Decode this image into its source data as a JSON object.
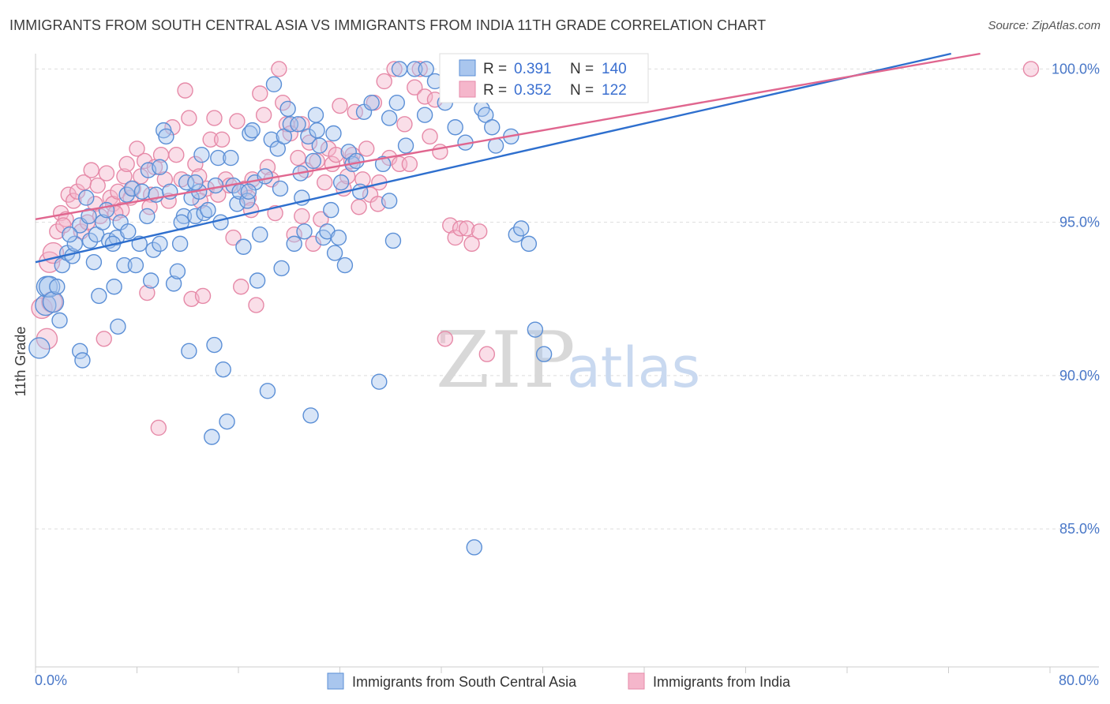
{
  "title": "IMMIGRANTS FROM SOUTH CENTRAL ASIA VS IMMIGRANTS FROM INDIA 11TH GRADE CORRELATION CHART",
  "source": "Source: ZipAtlas.com",
  "watermark": {
    "zip": "ZIP",
    "atlas": "atlas"
  },
  "colors": {
    "blue_fill": "#a9c6ee",
    "blue_stroke": "#5b8fd6",
    "blue_line": "#2e6fce",
    "pink_fill": "#f5b6cb",
    "pink_stroke": "#e68aa8",
    "pink_line": "#e0668f",
    "grid": "#dddddd",
    "axis_text": "#4a78c8"
  },
  "stats": {
    "r_label": "R =",
    "n_label": "N =",
    "blue": {
      "r": "0.391",
      "n": "140"
    },
    "pink": {
      "r": "0.352",
      "n": "122"
    }
  },
  "chart_data": {
    "type": "scatter",
    "ylabel": "11th Grade",
    "xlim": [
      0,
      80
    ],
    "ylim": [
      80.5,
      100.5
    ],
    "x_tick_labels": [
      "0.0%",
      "80.0%"
    ],
    "y_ticks": [
      85,
      90,
      95,
      100
    ],
    "y_tick_labels": [
      "85.0%",
      "90.0%",
      "95.0%",
      "100.0%"
    ],
    "legend": [
      "Immigrants from South Central Asia",
      "Immigrants from India"
    ],
    "series": [
      {
        "name": "Immigrants from South Central Asia",
        "color": "blue",
        "trend": {
          "x": [
            0,
            72.2
          ],
          "y": [
            93.7,
            100.5
          ]
        },
        "points": [
          [
            0.3,
            90.9
          ],
          [
            0.8,
            92.3
          ],
          [
            0.9,
            92.9
          ],
          [
            1.1,
            92.9
          ],
          [
            1.4,
            92.4
          ],
          [
            1.7,
            92.9
          ],
          [
            2.1,
            93.6
          ],
          [
            2.5,
            94.0
          ],
          [
            2.9,
            93.9
          ],
          [
            3.1,
            94.3
          ],
          [
            3.5,
            90.8
          ],
          [
            3.5,
            94.9
          ],
          [
            3.7,
            90.5
          ],
          [
            4.0,
            95.8
          ],
          [
            4.3,
            94.4
          ],
          [
            4.6,
            93.7
          ],
          [
            4.8,
            94.6
          ],
          [
            5.0,
            92.6
          ],
          [
            5.3,
            95.0
          ],
          [
            5.6,
            95.4
          ],
          [
            5.8,
            94.4
          ],
          [
            6.2,
            92.9
          ],
          [
            6.4,
            94.5
          ],
          [
            6.5,
            91.6
          ],
          [
            6.7,
            95.0
          ],
          [
            7.0,
            93.6
          ],
          [
            7.2,
            95.9
          ],
          [
            7.3,
            94.7
          ],
          [
            7.6,
            96.1
          ],
          [
            7.9,
            93.6
          ],
          [
            8.2,
            94.3
          ],
          [
            8.4,
            96.0
          ],
          [
            8.8,
            95.2
          ],
          [
            8.9,
            96.7
          ],
          [
            9.1,
            93.1
          ],
          [
            9.3,
            94.1
          ],
          [
            9.5,
            95.9
          ],
          [
            9.8,
            94.3
          ],
          [
            10.1,
            98.0
          ],
          [
            10.3,
            97.8
          ],
          [
            10.6,
            96.0
          ],
          [
            10.9,
            93.0
          ],
          [
            11.2,
            93.4
          ],
          [
            11.4,
            94.3
          ],
          [
            11.7,
            95.2
          ],
          [
            11.9,
            96.3
          ],
          [
            12.1,
            90.8
          ],
          [
            12.3,
            95.8
          ],
          [
            12.6,
            95.2
          ],
          [
            12.9,
            96.0
          ],
          [
            13.1,
            97.2
          ],
          [
            13.3,
            95.3
          ],
          [
            13.6,
            95.4
          ],
          [
            13.9,
            88.0
          ],
          [
            14.1,
            91.0
          ],
          [
            14.4,
            97.1
          ],
          [
            14.6,
            95.0
          ],
          [
            14.8,
            90.2
          ],
          [
            15.1,
            88.5
          ],
          [
            15.4,
            97.1
          ],
          [
            15.6,
            96.2
          ],
          [
            15.9,
            95.6
          ],
          [
            16.1,
            96.0
          ],
          [
            16.4,
            94.2
          ],
          [
            16.7,
            95.7
          ],
          [
            16.9,
            97.9
          ],
          [
            17.1,
            98.0
          ],
          [
            17.3,
            96.3
          ],
          [
            17.5,
            93.1
          ],
          [
            17.7,
            94.6
          ],
          [
            18.1,
            96.5
          ],
          [
            18.3,
            89.5
          ],
          [
            18.6,
            97.7
          ],
          [
            18.8,
            99.5
          ],
          [
            19.1,
            97.4
          ],
          [
            19.4,
            93.5
          ],
          [
            19.6,
            97.8
          ],
          [
            19.9,
            98.7
          ],
          [
            20.1,
            98.2
          ],
          [
            20.4,
            94.3
          ],
          [
            20.7,
            98.2
          ],
          [
            21.0,
            95.8
          ],
          [
            21.2,
            94.7
          ],
          [
            21.5,
            97.8
          ],
          [
            21.7,
            88.7
          ],
          [
            21.9,
            97.0
          ],
          [
            22.2,
            98.0
          ],
          [
            22.4,
            97.5
          ],
          [
            22.7,
            94.5
          ],
          [
            23.0,
            94.7
          ],
          [
            23.3,
            95.4
          ],
          [
            23.6,
            94.0
          ],
          [
            23.9,
            94.5
          ],
          [
            24.1,
            96.3
          ],
          [
            24.4,
            93.6
          ],
          [
            24.7,
            97.3
          ],
          [
            25.0,
            96.9
          ],
          [
            25.3,
            97.0
          ],
          [
            25.6,
            96.0
          ],
          [
            25.9,
            98.6
          ],
          [
            26.5,
            98.9
          ],
          [
            27.1,
            89.8
          ],
          [
            27.4,
            96.9
          ],
          [
            27.9,
            98.4
          ],
          [
            28.2,
            94.4
          ],
          [
            28.7,
            100.0
          ],
          [
            29.2,
            97.5
          ],
          [
            29.9,
            100.0
          ],
          [
            30.7,
            98.5
          ],
          [
            31.5,
            99.6
          ],
          [
            32.3,
            98.9
          ],
          [
            33.1,
            98.1
          ],
          [
            33.9,
            97.6
          ],
          [
            34.6,
            84.4
          ],
          [
            35.2,
            98.7
          ],
          [
            35.5,
            98.5
          ],
          [
            36.0,
            98.1
          ],
          [
            36.3,
            97.5
          ],
          [
            37.5,
            97.8
          ],
          [
            37.9,
            94.6
          ],
          [
            38.3,
            94.8
          ],
          [
            38.9,
            94.3
          ],
          [
            39.4,
            91.5
          ],
          [
            40.1,
            90.7
          ],
          [
            28.5,
            98.9
          ],
          [
            12.6,
            96.3
          ],
          [
            9.8,
            96.8
          ],
          [
            6.1,
            94.3
          ],
          [
            4.2,
            95.2
          ],
          [
            30.8,
            100.0
          ],
          [
            19.3,
            96.1
          ],
          [
            23.5,
            97.9
          ],
          [
            14.2,
            96.2
          ],
          [
            16.8,
            96.0
          ],
          [
            22.1,
            98.5
          ],
          [
            1.9,
            91.8
          ],
          [
            2.7,
            94.6
          ],
          [
            20.9,
            96.6
          ],
          [
            11.5,
            95.0
          ],
          [
            27.9,
            95.7
          ]
        ]
      },
      {
        "name": "Immigrants from India",
        "color": "pink",
        "trend": {
          "x": [
            0,
            74.5
          ],
          "y": [
            95.1,
            100.5
          ]
        },
        "points": [
          [
            0.5,
            92.2
          ],
          [
            0.9,
            91.2
          ],
          [
            1.1,
            93.7
          ],
          [
            1.4,
            94.0
          ],
          [
            1.7,
            94.7
          ],
          [
            2.0,
            95.3
          ],
          [
            2.4,
            95.1
          ],
          [
            2.6,
            95.9
          ],
          [
            3.0,
            95.7
          ],
          [
            3.3,
            96.0
          ],
          [
            3.6,
            94.7
          ],
          [
            3.8,
            96.3
          ],
          [
            4.1,
            95.0
          ],
          [
            4.4,
            96.7
          ],
          [
            4.7,
            95.6
          ],
          [
            4.9,
            96.2
          ],
          [
            5.1,
            95.2
          ],
          [
            5.4,
            91.2
          ],
          [
            5.6,
            96.6
          ],
          [
            5.9,
            95.8
          ],
          [
            6.1,
            95.6
          ],
          [
            6.5,
            96.0
          ],
          [
            6.8,
            95.4
          ],
          [
            7.0,
            96.5
          ],
          [
            7.2,
            96.9
          ],
          [
            7.5,
            95.8
          ],
          [
            7.7,
            96.1
          ],
          [
            8.0,
            97.4
          ],
          [
            8.3,
            96.5
          ],
          [
            8.6,
            97.0
          ],
          [
            8.8,
            92.7
          ],
          [
            9.1,
            95.9
          ],
          [
            9.4,
            96.8
          ],
          [
            9.7,
            88.3
          ],
          [
            9.9,
            97.2
          ],
          [
            10.2,
            96.4
          ],
          [
            10.5,
            95.7
          ],
          [
            10.8,
            98.1
          ],
          [
            11.1,
            97.2
          ],
          [
            11.5,
            96.4
          ],
          [
            11.8,
            99.3
          ],
          [
            12.1,
            98.4
          ],
          [
            12.3,
            92.5
          ],
          [
            12.6,
            96.9
          ],
          [
            12.9,
            96.5
          ],
          [
            13.2,
            92.6
          ],
          [
            13.5,
            96.1
          ],
          [
            13.8,
            97.7
          ],
          [
            14.1,
            98.4
          ],
          [
            14.4,
            95.9
          ],
          [
            14.7,
            97.7
          ],
          [
            15.0,
            96.4
          ],
          [
            15.3,
            96.2
          ],
          [
            15.6,
            94.5
          ],
          [
            15.9,
            98.3
          ],
          [
            16.2,
            92.9
          ],
          [
            16.5,
            96.1
          ],
          [
            16.8,
            95.8
          ],
          [
            17.1,
            96.4
          ],
          [
            17.4,
            92.3
          ],
          [
            17.7,
            99.2
          ],
          [
            18.0,
            98.5
          ],
          [
            18.3,
            96.8
          ],
          [
            18.6,
            96.4
          ],
          [
            18.9,
            95.3
          ],
          [
            19.2,
            100.0
          ],
          [
            19.5,
            98.9
          ],
          [
            19.8,
            98.2
          ],
          [
            20.1,
            97.9
          ],
          [
            20.4,
            94.6
          ],
          [
            20.7,
            97.1
          ],
          [
            21.0,
            98.2
          ],
          [
            21.3,
            96.7
          ],
          [
            21.6,
            97.6
          ],
          [
            21.9,
            94.3
          ],
          [
            22.2,
            97.0
          ],
          [
            22.5,
            95.1
          ],
          [
            22.8,
            96.3
          ],
          [
            23.1,
            97.4
          ],
          [
            23.4,
            96.9
          ],
          [
            23.7,
            97.2
          ],
          [
            24.0,
            98.8
          ],
          [
            24.3,
            96.1
          ],
          [
            24.6,
            96.5
          ],
          [
            24.9,
            97.0
          ],
          [
            25.2,
            98.6
          ],
          [
            25.5,
            95.5
          ],
          [
            25.8,
            96.4
          ],
          [
            26.1,
            97.4
          ],
          [
            26.4,
            95.9
          ],
          [
            26.7,
            98.9
          ],
          [
            27.1,
            96.3
          ],
          [
            27.5,
            99.6
          ],
          [
            27.9,
            97.1
          ],
          [
            28.3,
            100.0
          ],
          [
            28.7,
            96.9
          ],
          [
            29.1,
            98.2
          ],
          [
            29.5,
            96.9
          ],
          [
            29.9,
            99.4
          ],
          [
            30.3,
            100.0
          ],
          [
            30.7,
            99.1
          ],
          [
            31.1,
            97.8
          ],
          [
            31.5,
            99.0
          ],
          [
            31.9,
            97.3
          ],
          [
            32.3,
            91.2
          ],
          [
            32.7,
            94.9
          ],
          [
            33.1,
            94.5
          ],
          [
            33.5,
            94.8
          ],
          [
            34.0,
            94.8
          ],
          [
            34.4,
            94.3
          ],
          [
            35.0,
            94.7
          ],
          [
            35.6,
            90.7
          ],
          [
            78.5,
            100.0
          ],
          [
            1.3,
            92.4
          ],
          [
            2.2,
            94.9
          ],
          [
            6.3,
            95.3
          ],
          [
            9.0,
            95.5
          ],
          [
            13.0,
            95.7
          ],
          [
            17.0,
            95.4
          ],
          [
            21.0,
            95.2
          ],
          [
            25.0,
            97.2
          ],
          [
            27.0,
            95.6
          ]
        ]
      }
    ]
  }
}
